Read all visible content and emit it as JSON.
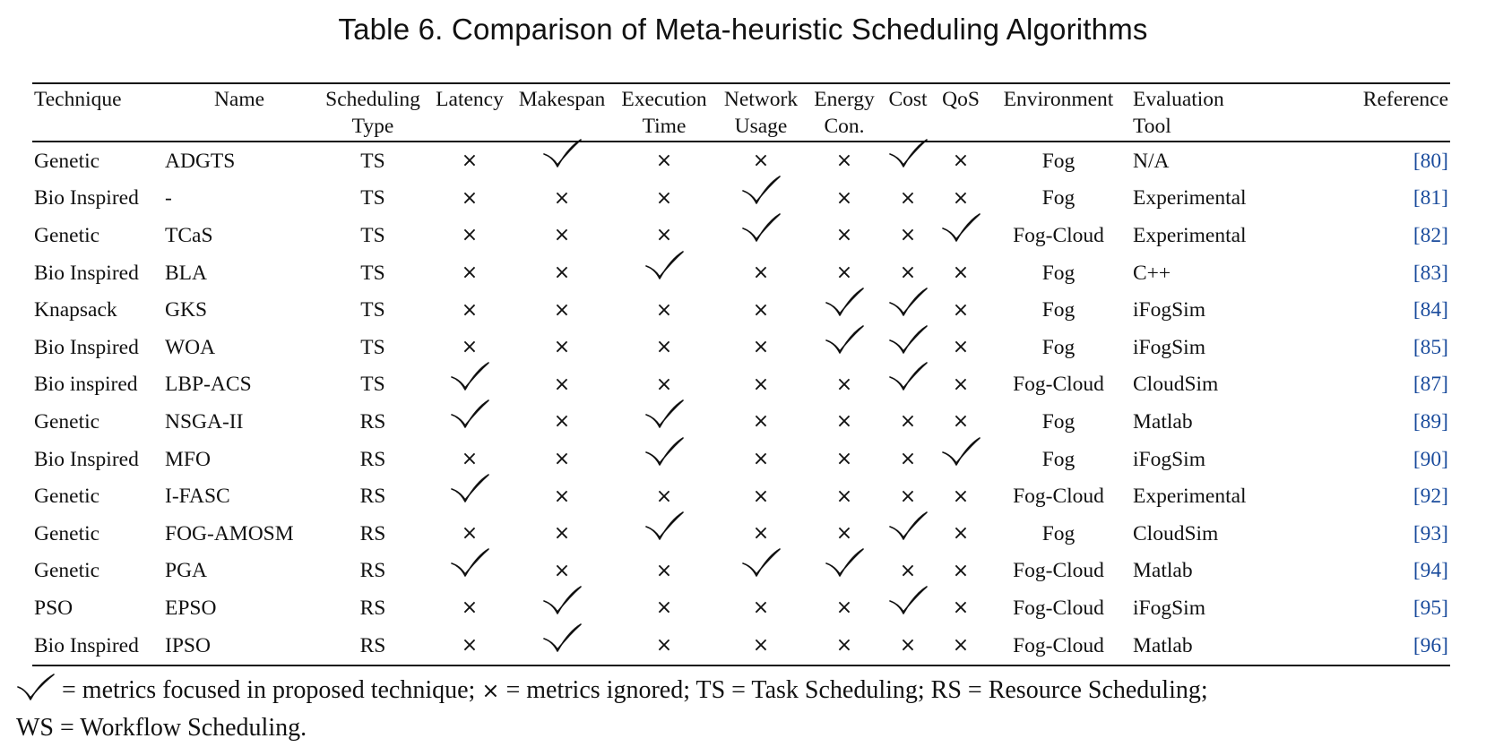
{
  "caption": "Table 6.  Comparison of Meta-heuristic Scheduling Algorithms",
  "headers": [
    {
      "line1": "Technique",
      "line2": ""
    },
    {
      "line1": "Name",
      "line2": ""
    },
    {
      "line1": "Scheduling",
      "line2": "Type"
    },
    {
      "line1": "Latency",
      "line2": ""
    },
    {
      "line1": "Makespan",
      "line2": ""
    },
    {
      "line1": "Execution",
      "line2": "Time"
    },
    {
      "line1": "Network",
      "line2": "Usage"
    },
    {
      "line1": "Energy",
      "line2": "Con."
    },
    {
      "line1": "Cost",
      "line2": ""
    },
    {
      "line1": "QoS",
      "line2": ""
    },
    {
      "line1": "Environment",
      "line2": ""
    },
    {
      "line1": "Evaluation",
      "line2": "Tool"
    },
    {
      "line1": "Reference",
      "line2": ""
    }
  ],
  "rows": [
    {
      "technique": "Genetic",
      "name": "ADGTS",
      "type": "TS",
      "metrics": [
        false,
        true,
        false,
        false,
        false,
        true,
        false
      ],
      "environment": "Fog",
      "tool": "N/A",
      "ref": "80"
    },
    {
      "technique": "Bio Inspired",
      "name": "-",
      "type": "TS",
      "metrics": [
        false,
        false,
        false,
        true,
        false,
        false,
        false
      ],
      "environment": "Fog",
      "tool": "Experimental",
      "ref": "81"
    },
    {
      "technique": "Genetic",
      "name": "TCaS",
      "type": "TS",
      "metrics": [
        false,
        false,
        false,
        true,
        false,
        false,
        true
      ],
      "environment": "Fog-Cloud",
      "tool": "Experimental",
      "ref": "82"
    },
    {
      "technique": "Bio Inspired",
      "name": "BLA",
      "type": "TS",
      "metrics": [
        false,
        false,
        true,
        false,
        false,
        false,
        false
      ],
      "environment": "Fog",
      "tool": "C++",
      "ref": "83"
    },
    {
      "technique": "Knapsack",
      "name": "GKS",
      "type": "TS",
      "metrics": [
        false,
        false,
        false,
        false,
        true,
        true,
        false
      ],
      "environment": "Fog",
      "tool": "iFogSim",
      "ref": "84"
    },
    {
      "technique": "Bio Inspired",
      "name": "WOA",
      "type": "TS",
      "metrics": [
        false,
        false,
        false,
        false,
        true,
        true,
        false
      ],
      "environment": "Fog",
      "tool": "iFogSim",
      "ref": "85"
    },
    {
      "technique": "Bio inspired",
      "name": "LBP-ACS",
      "type": "TS",
      "metrics": [
        true,
        false,
        false,
        false,
        false,
        true,
        false
      ],
      "environment": "Fog-Cloud",
      "tool": "CloudSim",
      "ref": "87"
    },
    {
      "technique": "Genetic",
      "name": "NSGA-II",
      "type": "RS",
      "metrics": [
        true,
        false,
        true,
        false,
        false,
        false,
        false
      ],
      "environment": "Fog",
      "tool": "Matlab",
      "ref": "89"
    },
    {
      "technique": "Bio Inspired",
      "name": "MFO",
      "type": "RS",
      "metrics": [
        false,
        false,
        true,
        false,
        false,
        false,
        true
      ],
      "environment": "Fog",
      "tool": "iFogSim",
      "ref": "90"
    },
    {
      "technique": "Genetic",
      "name": "I-FASC",
      "type": "RS",
      "metrics": [
        true,
        false,
        false,
        false,
        false,
        false,
        false
      ],
      "environment": "Fog-Cloud",
      "tool": "Experimental",
      "ref": "92"
    },
    {
      "technique": "Genetic",
      "name": "FOG-AMOSM",
      "type": "RS",
      "metrics": [
        false,
        false,
        true,
        false,
        false,
        true,
        false
      ],
      "environment": "Fog",
      "tool": "CloudSim",
      "ref": "93"
    },
    {
      "technique": "Genetic",
      "name": "PGA",
      "type": "RS",
      "metrics": [
        true,
        false,
        false,
        true,
        true,
        false,
        false
      ],
      "environment": "Fog-Cloud",
      "tool": "Matlab",
      "ref": "94"
    },
    {
      "technique": "PSO",
      "name": "EPSO",
      "type": "RS",
      "metrics": [
        false,
        true,
        false,
        false,
        false,
        true,
        false
      ],
      "environment": "Fog-Cloud",
      "tool": "iFogSim",
      "ref": "95"
    },
    {
      "technique": "Bio Inspired",
      "name": "IPSO",
      "type": "RS",
      "metrics": [
        false,
        true,
        false,
        false,
        false,
        false,
        false
      ],
      "environment": "Fog-Cloud",
      "tool": "Matlab",
      "ref": "96"
    }
  ],
  "footnote": {
    "part1": " = metrics focused in proposed technique; ",
    "cross_symbol": "×",
    "part2": " = metrics ignored; TS = Task Scheduling; RS = Resource Scheduling;",
    "line2": "WS = Workflow Scheduling."
  },
  "ref_color": "#1a4b9c"
}
